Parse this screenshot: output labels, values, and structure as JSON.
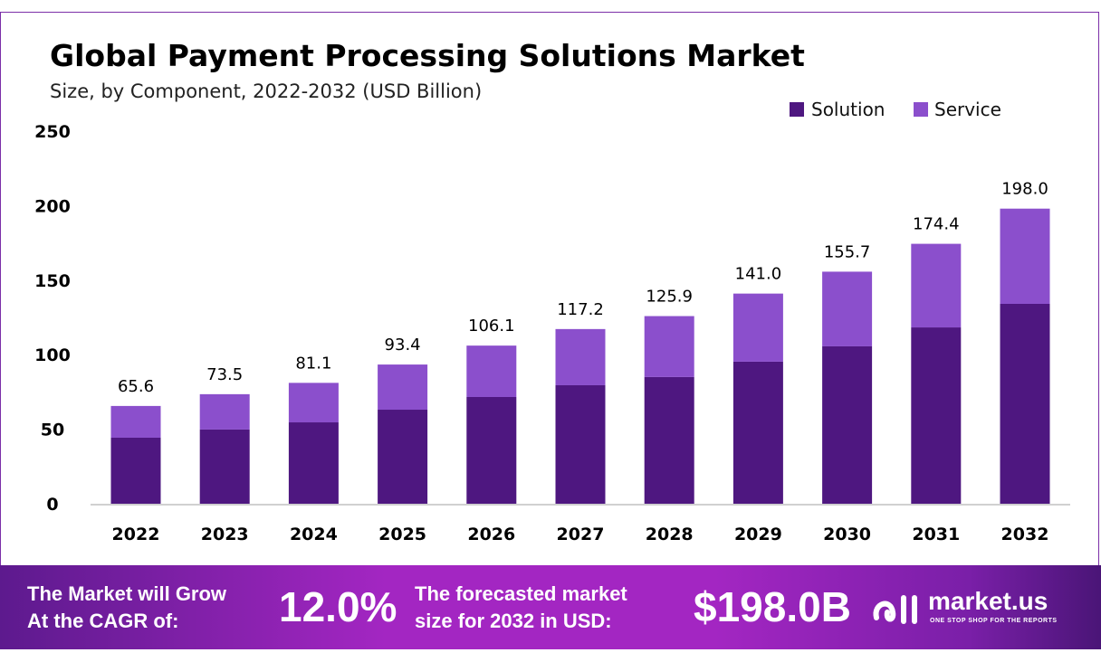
{
  "chart_data": {
    "type": "bar",
    "stacked": true,
    "title": "Global Payment Processing Solutions Market",
    "subtitle": "Size, by Component, 2022-2032 (USD Billion)",
    "categories": [
      "2022",
      "2023",
      "2024",
      "2025",
      "2026",
      "2027",
      "2028",
      "2029",
      "2030",
      "2031",
      "2032"
    ],
    "series": [
      {
        "name": "Solution",
        "color": "#4e1780",
        "values": [
          44.3,
          49.8,
          54.6,
          63.1,
          71.6,
          79.5,
          85.0,
          95.3,
          105.6,
          118.3,
          134.1
        ]
      },
      {
        "name": "Service",
        "color": "#8b4fcc",
        "values": [
          21.3,
          23.7,
          26.5,
          30.3,
          34.5,
          37.7,
          40.9,
          45.7,
          50.1,
          56.1,
          63.9
        ]
      }
    ],
    "totals": [
      "65.6",
      "73.5",
      "81.1",
      "93.4",
      "106.1",
      "117.2",
      "125.9",
      "141.0",
      "155.7",
      "174.4",
      "198.0"
    ],
    "yticks": [
      "0",
      "50",
      "100",
      "150",
      "200",
      "250"
    ],
    "ylim": [
      0,
      250
    ],
    "grid": false,
    "legend": "top-right"
  },
  "footer": {
    "cagr_label_1": "The Market will Grow",
    "cagr_label_2": "At the CAGR of:",
    "cagr_value": "12.0%",
    "forecast_label_1": "The forecasted market",
    "forecast_label_2": "size for 2032 in USD:",
    "forecast_value": "$198.0B",
    "logo_text": "market.us",
    "logo_tagline": "ONE STOP SHOP FOR THE REPORTS"
  }
}
